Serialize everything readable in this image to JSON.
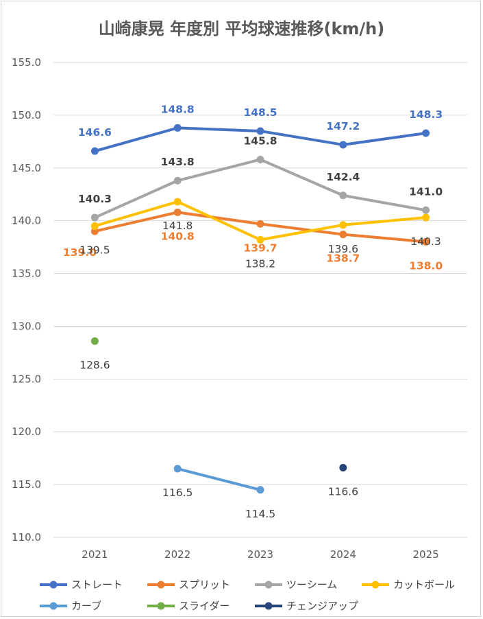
{
  "chart_data": {
    "type": "line",
    "title": "山崎康晃 年度別 平均球速推移(km/h)",
    "xlabel": "",
    "ylabel": "",
    "categories": [
      "2021",
      "2022",
      "2023",
      "2024",
      "2025"
    ],
    "ylim": [
      110.0,
      155.0
    ],
    "yticks": [
      "110.0",
      "115.0",
      "120.0",
      "125.0",
      "130.0",
      "135.0",
      "140.0",
      "145.0",
      "150.0",
      "155.0"
    ],
    "grid": true,
    "legend_position": "bottom",
    "series": [
      {
        "name": "ストレート",
        "color": "#4472c4",
        "values": [
          146.6,
          148.8,
          148.5,
          147.2,
          148.3
        ],
        "labels": [
          "146.6",
          "148.8",
          "148.5",
          "147.2",
          "148.3"
        ]
      },
      {
        "name": "スプリット",
        "color": "#ed7d31",
        "values": [
          139.0,
          140.8,
          139.7,
          138.7,
          138.0
        ],
        "labels": [
          "139.0",
          "140.8",
          "139.7",
          "138.7",
          "138.0"
        ]
      },
      {
        "name": "ツーシーム",
        "color": "#a5a5a5",
        "values": [
          140.3,
          143.8,
          145.8,
          142.4,
          141.0
        ],
        "labels": [
          "140.3",
          "143.8",
          "145.8",
          "142.4",
          "141.0"
        ]
      },
      {
        "name": "カットボール",
        "color": "#ffc000",
        "values": [
          139.5,
          141.8,
          138.2,
          139.6,
          140.3
        ],
        "labels": [
          "139.5",
          "141.8",
          "138.2",
          "139.6",
          "140.3"
        ]
      },
      {
        "name": "カーブ",
        "color": "#5b9bd5",
        "values": [
          null,
          116.5,
          114.5,
          null,
          null
        ],
        "labels": [
          null,
          "116.5",
          "114.5",
          null,
          null
        ]
      },
      {
        "name": "スライダー",
        "color": "#70ad47",
        "values": [
          128.6,
          null,
          null,
          null,
          null
        ],
        "labels": [
          "128.6",
          null,
          null,
          null,
          null
        ]
      },
      {
        "name": "チェンジアップ",
        "color": "#264478",
        "values": [
          null,
          null,
          null,
          116.6,
          null
        ],
        "labels": [
          null,
          null,
          null,
          "116.6",
          null
        ]
      }
    ]
  }
}
